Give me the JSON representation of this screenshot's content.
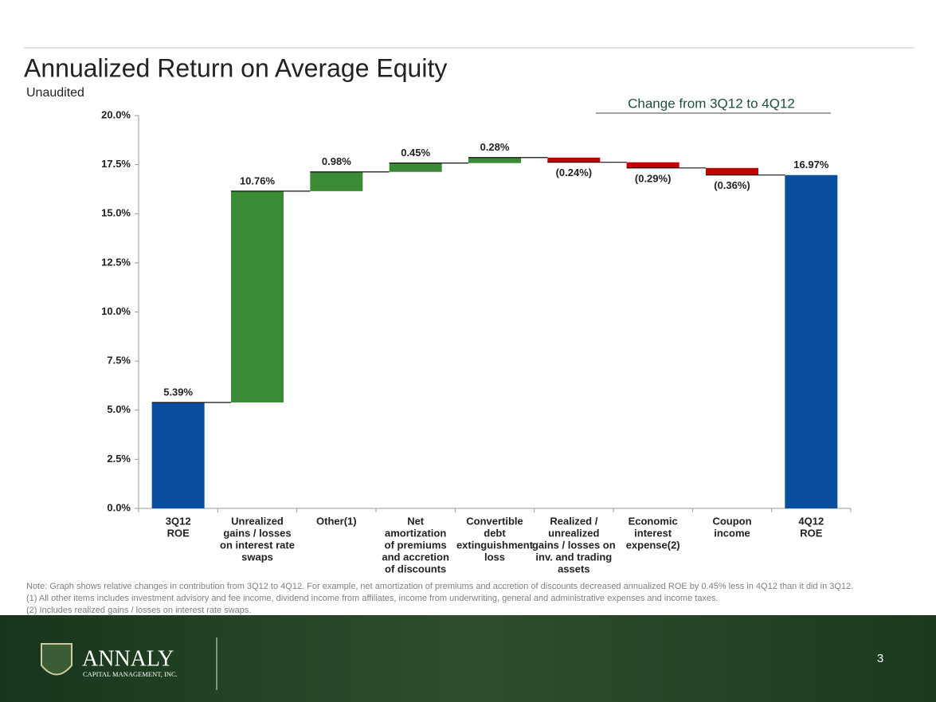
{
  "chart_data": {
    "type": "waterfall",
    "title": "Annualized Return on Average Equity",
    "subtitle": "Unaudited",
    "annotation": "Change from 3Q12 to 4Q12",
    "categories": [
      [
        "3Q12",
        "ROE"
      ],
      [
        "Unrealized",
        "gains / losses",
        "on interest rate",
        "swaps"
      ],
      [
        "Other(1)"
      ],
      [
        "Net",
        "amortization",
        "of premiums",
        "and accretion",
        "of discounts"
      ],
      [
        "Convertible",
        "debt",
        "extinguishment",
        "loss"
      ],
      [
        "Realized /",
        "unrealized",
        "gains / losses on",
        "inv. and trading",
        "assets"
      ],
      [
        "Economic",
        "interest",
        "expense(2)"
      ],
      [
        "Coupon",
        "income"
      ],
      [
        "4Q12",
        "ROE"
      ]
    ],
    "measure": [
      "absolute",
      "relative",
      "relative",
      "relative",
      "relative",
      "relative",
      "relative",
      "relative",
      "total"
    ],
    "values": [
      5.39,
      10.76,
      0.98,
      0.45,
      0.28,
      -0.24,
      -0.29,
      -0.36,
      16.97
    ],
    "value_labels": [
      "5.39%",
      "10.76%",
      "0.98%",
      "0.45%",
      "0.28%",
      "(0.24%)",
      "(0.29%)",
      "(0.36%)",
      "16.97%"
    ],
    "colors": {
      "total": "#0a4f9e",
      "increase": "#3a8a36",
      "decrease": "#c00000"
    },
    "ylim": [
      0,
      20
    ],
    "yticks": [
      {
        "value": 0,
        "label": "0.0%"
      },
      {
        "value": 2.5,
        "label": "2.5%"
      },
      {
        "value": 5,
        "label": "5.0%"
      },
      {
        "value": 7.5,
        "label": "7.5%"
      },
      {
        "value": 10,
        "label": "10.0%"
      },
      {
        "value": 12.5,
        "label": "12.5%"
      },
      {
        "value": 15,
        "label": "15.0%"
      },
      {
        "value": 17.5,
        "label": "17.5%"
      },
      {
        "value": 20,
        "label": "20.0%"
      }
    ]
  },
  "notes": [
    "Note:  Graph shows relative changes in contribution from 3Q12 to 4Q12.  For example, net amortization of premiums and accretion of discounts decreased annualized ROE by 0.45% less in 4Q12 than it did in 3Q12.",
    "(1) All other items includes investment advisory and fee income, dividend income from affiliates, income from underwriting, general and administrative expenses and income taxes.",
    "(2) Includes realized gains / losses on interest rate swaps."
  ],
  "footer": {
    "logo": "ANNALY",
    "logo_tagline": "CAPITAL MANAGEMENT, INC.",
    "page_number": "3"
  }
}
